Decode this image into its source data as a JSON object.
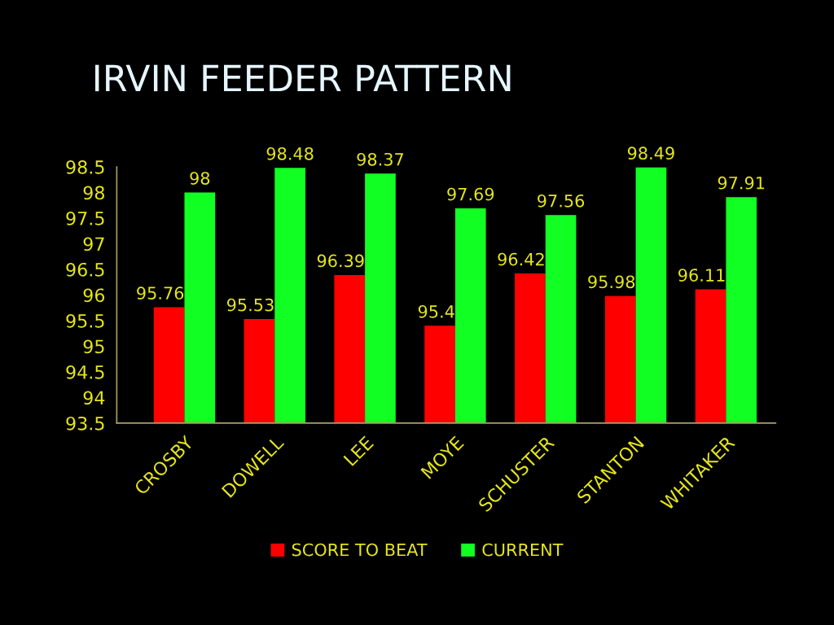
{
  "chart_data": {
    "type": "bar",
    "title": "IRVIN FEEDER PATTERN",
    "categories": [
      "CROSBY",
      "DOWELL",
      "LEE",
      "MOYE",
      "SCHUSTER",
      "STANTON",
      "WHITAKER"
    ],
    "series": [
      {
        "name": "SCORE TO BEAT",
        "color": "#ff0000",
        "values": [
          95.76,
          95.53,
          96.39,
          95.4,
          96.42,
          95.98,
          96.11
        ]
      },
      {
        "name": "CURRENT",
        "color": "#11ff22",
        "values": [
          98,
          98.48,
          98.37,
          97.69,
          97.56,
          98.49,
          97.91
        ]
      }
    ],
    "ylim": [
      93.5,
      98.5
    ],
    "yticks": [
      93.5,
      94,
      94.5,
      95,
      95.5,
      96,
      96.5,
      97,
      97.5,
      98,
      98.5
    ],
    "data_labels": true,
    "legend": "bottom"
  }
}
